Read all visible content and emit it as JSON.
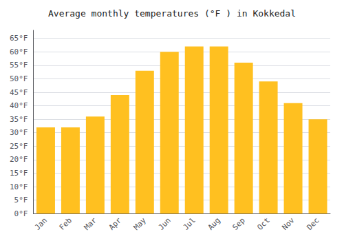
{
  "chart_data": {
    "type": "bar",
    "title": "Average monthly temperatures (°F ) in Kokkedal",
    "categories": [
      "Jan",
      "Feb",
      "Mar",
      "Apr",
      "May",
      "Jun",
      "Jul",
      "Aug",
      "Sep",
      "Oct",
      "Nov",
      "Dec"
    ],
    "values": [
      32,
      32,
      36,
      44,
      53,
      60,
      62,
      62,
      56,
      49,
      41,
      35
    ],
    "color": "#FFC020",
    "ylim": [
      0,
      68
    ],
    "yticks": [
      {
        "value": 0,
        "label": "0°F"
      },
      {
        "value": 5,
        "label": "5°F"
      },
      {
        "value": 10,
        "label": "10°F"
      },
      {
        "value": 15,
        "label": "15°F"
      },
      {
        "value": 20,
        "label": "20°F"
      },
      {
        "value": 25,
        "label": "25°F"
      },
      {
        "value": 30,
        "label": "30°F"
      },
      {
        "value": 35,
        "label": "35°F"
      },
      {
        "value": 40,
        "label": "40°F"
      },
      {
        "value": 45,
        "label": "45°F"
      },
      {
        "value": 50,
        "label": "50°F"
      },
      {
        "value": 55,
        "label": "55°F"
      },
      {
        "value": 60,
        "label": "60°F"
      },
      {
        "value": 65,
        "label": "65°F"
      }
    ],
    "grid": true
  }
}
